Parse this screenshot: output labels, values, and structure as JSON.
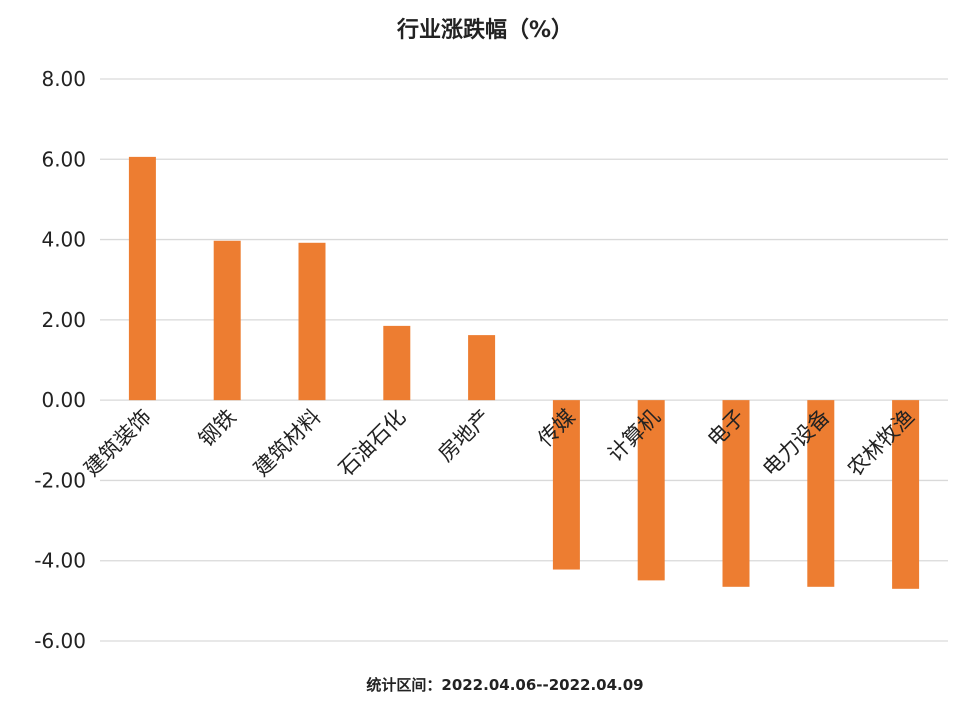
{
  "footnote": "统计区间：2022.04.06--2022.04.09",
  "chart_data": {
    "type": "bar",
    "title": "行业涨跌幅（%）",
    "xlabel": "",
    "ylabel": "",
    "categories": [
      "建筑装饰",
      "钢铁",
      "建筑材料",
      "石油石化",
      "房地产",
      "传媒",
      "计算机",
      "电子",
      "电力设备",
      "农林牧渔"
    ],
    "values": [
      6.06,
      3.97,
      3.92,
      1.85,
      1.62,
      -4.22,
      -4.49,
      -4.65,
      -4.65,
      -4.7
    ],
    "ylim": [
      -6,
      8
    ],
    "yticks": [
      "8.00",
      "6.00",
      "4.00",
      "2.00",
      "0.00",
      "-2.00",
      "-4.00",
      "-6.00"
    ],
    "grid": true,
    "legend": "none",
    "bar_color": "#ED7D31",
    "grid_color": "#D9D9D9"
  }
}
